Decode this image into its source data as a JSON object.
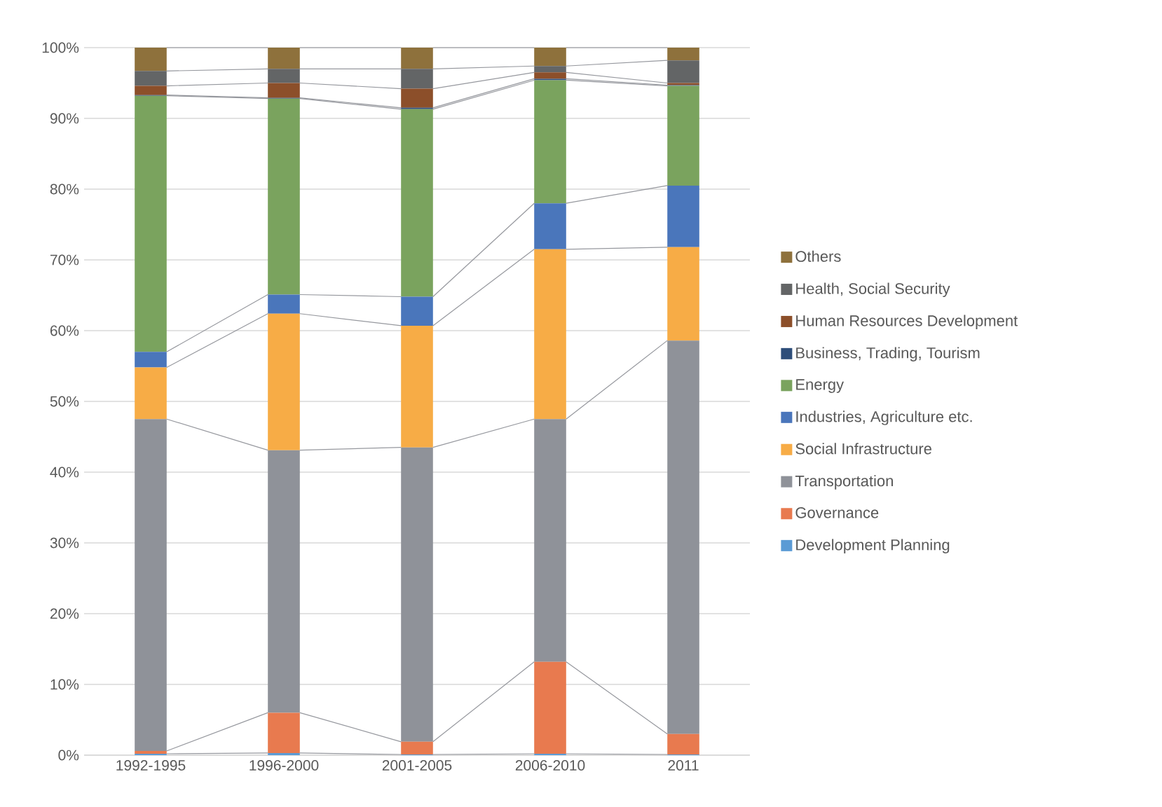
{
  "chart_data": {
    "type": "bar",
    "stacked": true,
    "categories": [
      "1992-1995",
      "1996-2000",
      "2001-2005",
      "2006-2010",
      "2011"
    ],
    "series": [
      {
        "name": "Development Planning",
        "color": "#5b9bd5",
        "values": [
          0.2,
          0.3,
          0.1,
          0.2,
          0.1
        ]
      },
      {
        "name": "Governance",
        "color": "#e87a4f",
        "values": [
          0.4,
          5.7,
          1.8,
          13.0,
          2.9
        ]
      },
      {
        "name": "Transportation",
        "color": "#8f9299",
        "values": [
          46.9,
          37.1,
          41.6,
          34.3,
          55.6
        ]
      },
      {
        "name": "Social Infrastructure",
        "color": "#f7ac46",
        "values": [
          7.3,
          19.3,
          17.2,
          24.0,
          13.2
        ]
      },
      {
        "name": "Industries, Agriculture etc.",
        "color": "#4a76bb",
        "values": [
          2.2,
          2.7,
          4.1,
          6.5,
          8.7
        ]
      },
      {
        "name": "Energy",
        "color": "#7aa35e",
        "values": [
          36.2,
          27.7,
          26.5,
          17.4,
          14.1
        ]
      },
      {
        "name": "Business, Trading, Tourism",
        "color": "#2e4e7a",
        "values": [
          0.1,
          0.1,
          0.2,
          0.2,
          0.1
        ]
      },
      {
        "name": "Human Resources Development",
        "color": "#8c4f2a",
        "values": [
          1.3,
          2.1,
          2.7,
          0.9,
          0.3
        ]
      },
      {
        "name": "Health, Social Security",
        "color": "#636566",
        "values": [
          2.1,
          2.0,
          2.8,
          0.9,
          3.2
        ]
      },
      {
        "name": "Others",
        "color": "#8e713c",
        "values": [
          3.3,
          3.0,
          3.0,
          2.6,
          1.8
        ]
      }
    ],
    "ylim": [
      0,
      100
    ],
    "yticks": [
      {
        "value": 0,
        "label": "0%"
      },
      {
        "value": 10,
        "label": "10%"
      },
      {
        "value": 20,
        "label": "20%"
      },
      {
        "value": 30,
        "label": "30%"
      },
      {
        "value": 40,
        "label": "40%"
      },
      {
        "value": 50,
        "label": "50%"
      },
      {
        "value": 60,
        "label": "60%"
      },
      {
        "value": 70,
        "label": "70%"
      },
      {
        "value": 80,
        "label": "80%"
      },
      {
        "value": 90,
        "label": "90%"
      },
      {
        "value": 100,
        "label": "100%"
      }
    ],
    "grid": "y",
    "legend": "right"
  }
}
